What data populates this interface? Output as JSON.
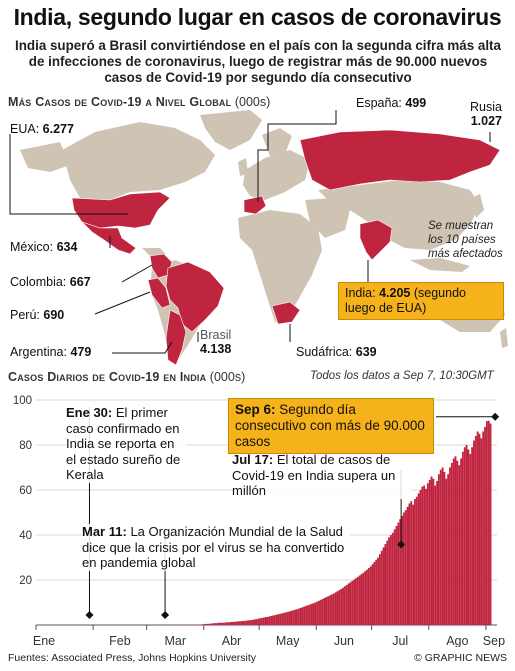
{
  "title": "India, segundo lugar en casos de coronavirus",
  "subtitle": "India superó a Brasil convirtiéndose en el país con la segunda cifra más alta de infecciones de coronavirus, luego de registrar más de 90.000 nuevos casos de Covid-19 por segundo día consecutivo",
  "map_section": {
    "heading": "Más Casos de Covid-19 a Nivel Global",
    "unit": "(000s)",
    "shown_note": [
      "Se muestran",
      "los 10 países",
      "más afectados"
    ],
    "highlight_color": "#c0253f",
    "land_color": "#cfc3b3",
    "countries": [
      {
        "name": "EUA:",
        "value": "6.277"
      },
      {
        "name": "España:",
        "value": "499"
      },
      {
        "name": "Rusia",
        "value": "1.027"
      },
      {
        "name": "México:",
        "value": "634"
      },
      {
        "name": "Colombia:",
        "value": "667"
      },
      {
        "name": "Perú:",
        "value": "690"
      },
      {
        "name": "Argentina:",
        "value": "479"
      },
      {
        "name": "Brasil",
        "value": "4.138"
      },
      {
        "name": "Sudáfrica:",
        "value": "639"
      }
    ],
    "india_callout": {
      "name": "India:",
      "value": "4.205",
      "text": "(segundo luego de EUA)"
    }
  },
  "chart_section": {
    "heading": "Casos Diarios de Covid-19 en India",
    "unit": "(000s)",
    "note": "Todos los datos a Sep 7, 10:30GMT"
  },
  "annotations": {
    "jan30": {
      "date": "Ene 30:",
      "text": "El primer caso confirmado en India se reporta en el estado sureño de Kerala"
    },
    "mar11": {
      "date": "Mar 11:",
      "text": "La Organización Mundial de la Salud dice que la crisis por el virus se ha convertido en pandemia global"
    },
    "jul17": {
      "date": "Jul 17:",
      "text": "El total de casos de Covid-19 en India supera un millón"
    },
    "sep6": {
      "date": "Sep 6:",
      "text": "Segundo día consecutivo con más de 90.000 casos"
    }
  },
  "chart_data": {
    "type": "bar",
    "title": "Casos Diarios de Covid-19 en India",
    "ylabel": "(000s)",
    "ylim": [
      0,
      100
    ],
    "yticks": [
      0,
      20,
      40,
      60,
      80,
      100
    ],
    "month_labels": [
      "Ene",
      "Feb",
      "Mar",
      "Abr",
      "May",
      "Jun",
      "Jul",
      "Ago",
      "Sep"
    ],
    "bar_color": "#c0253f",
    "grid": true,
    "x_start": "2020-01-01",
    "x_end": "2020-09-07",
    "series": [
      {
        "dates_start": "2020-03-01",
        "values": [
          0,
          0,
          0,
          0,
          0,
          0,
          0,
          0,
          0,
          0,
          0,
          0,
          0,
          0,
          0,
          0,
          0.1,
          0.1,
          0.1,
          0.1,
          0.1,
          0.1,
          0.1,
          0.1,
          0.1,
          0.1,
          0.2,
          0.2,
          0.2,
          0.2,
          0.3,
          0.4,
          0.5,
          0.5,
          0.6,
          0.7,
          0.8,
          0.8,
          0.9,
          1.0,
          1.0,
          1.0,
          1.1,
          1.2,
          1.2,
          1.3,
          1.4,
          1.4,
          1.5,
          1.6,
          1.7,
          1.7,
          1.8,
          1.9,
          2.0,
          2.1,
          2.2,
          2.3,
          2.5,
          2.6,
          2.8,
          3.0,
          3.1,
          3.3,
          3.5,
          3.6,
          3.8,
          4.0,
          4.2,
          4.4,
          4.6,
          4.8,
          5.0,
          5.2,
          5.4,
          5.6,
          5.8,
          6.0,
          6.3,
          6.5,
          6.8,
          7.0,
          7.3,
          7.6,
          7.9,
          8.2,
          8.5,
          8.8,
          9.1,
          9.4,
          9.7,
          10.0,
          10.4,
          10.8,
          11.2,
          11.6,
          12.0,
          12.4,
          12.8,
          13.2,
          13.6,
          14.0,
          14.5,
          15.0,
          15.5,
          16.0,
          16.6,
          17.2,
          17.8,
          18.4,
          19.0,
          19.6,
          20.2,
          20.8,
          21.4,
          22.0,
          22.6,
          23.2,
          23.9,
          24.6,
          25.3,
          26.0,
          27.0,
          28.0,
          29.0,
          30.0,
          31.5,
          33.0,
          34.5,
          36.0,
          37.5,
          39.0,
          40.0,
          41.0,
          42.5,
          44.0,
          45.5,
          47.0,
          48.5,
          50.0,
          51.0,
          52.5,
          54.0,
          55.0,
          53.5,
          56.0,
          57.0,
          58.5,
          60.0,
          61.5,
          62.0,
          60.5,
          63.0,
          64.5,
          66.0,
          65.0,
          62.0,
          64.0,
          67.0,
          69.0,
          70.0,
          68.0,
          65.0,
          67.0,
          70.0,
          72.0,
          74.0,
          75.0,
          73.0,
          71.0,
          74.0,
          77.0,
          79.0,
          80.0,
          78.0,
          76.0,
          79.0,
          82.0,
          84.0,
          86.0,
          85.0,
          83.0,
          86.0,
          88.0,
          90.6,
          90.8,
          89.5
        ]
      }
    ]
  },
  "footer": {
    "sources": "Fuentes: Associated Press, Johns Hopkins University",
    "brand": "© GRAPHIC NEWS"
  }
}
